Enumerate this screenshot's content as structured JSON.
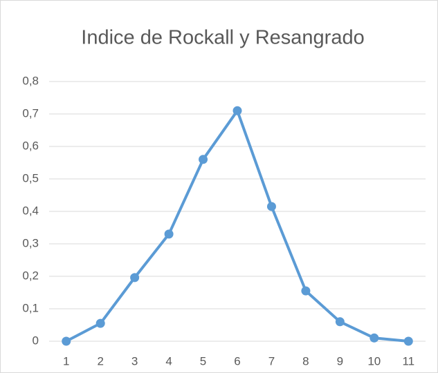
{
  "chart_data": {
    "type": "line",
    "title": "Indice de Rockall y Resangrado",
    "categories": [
      "1",
      "2",
      "3",
      "4",
      "5",
      "6",
      "7",
      "8",
      "9",
      "10",
      "11"
    ],
    "series": [
      {
        "name": "Resangrado",
        "color": "#5b9bd5",
        "values": [
          0,
          0.055,
          0.196,
          0.33,
          0.56,
          0.71,
          0.415,
          0.155,
          0.06,
          0.01,
          0
        ]
      }
    ],
    "ylim": [
      0,
      0.8
    ],
    "yticks": [
      0,
      {
        "value": 0.1,
        "label": "0,1"
      },
      {
        "value": 0.2,
        "label": "0,2"
      },
      {
        "value": 0.3,
        "label": "0,3"
      },
      {
        "value": 0.4,
        "label": "0,4"
      },
      {
        "value": 0.5,
        "label": "0,5"
      },
      {
        "value": 0.6,
        "label": "0,6"
      },
      {
        "value": 0.7,
        "label": "0,7"
      },
      {
        "value": 0.8,
        "label": "0,8"
      }
    ],
    "grid": true
  }
}
